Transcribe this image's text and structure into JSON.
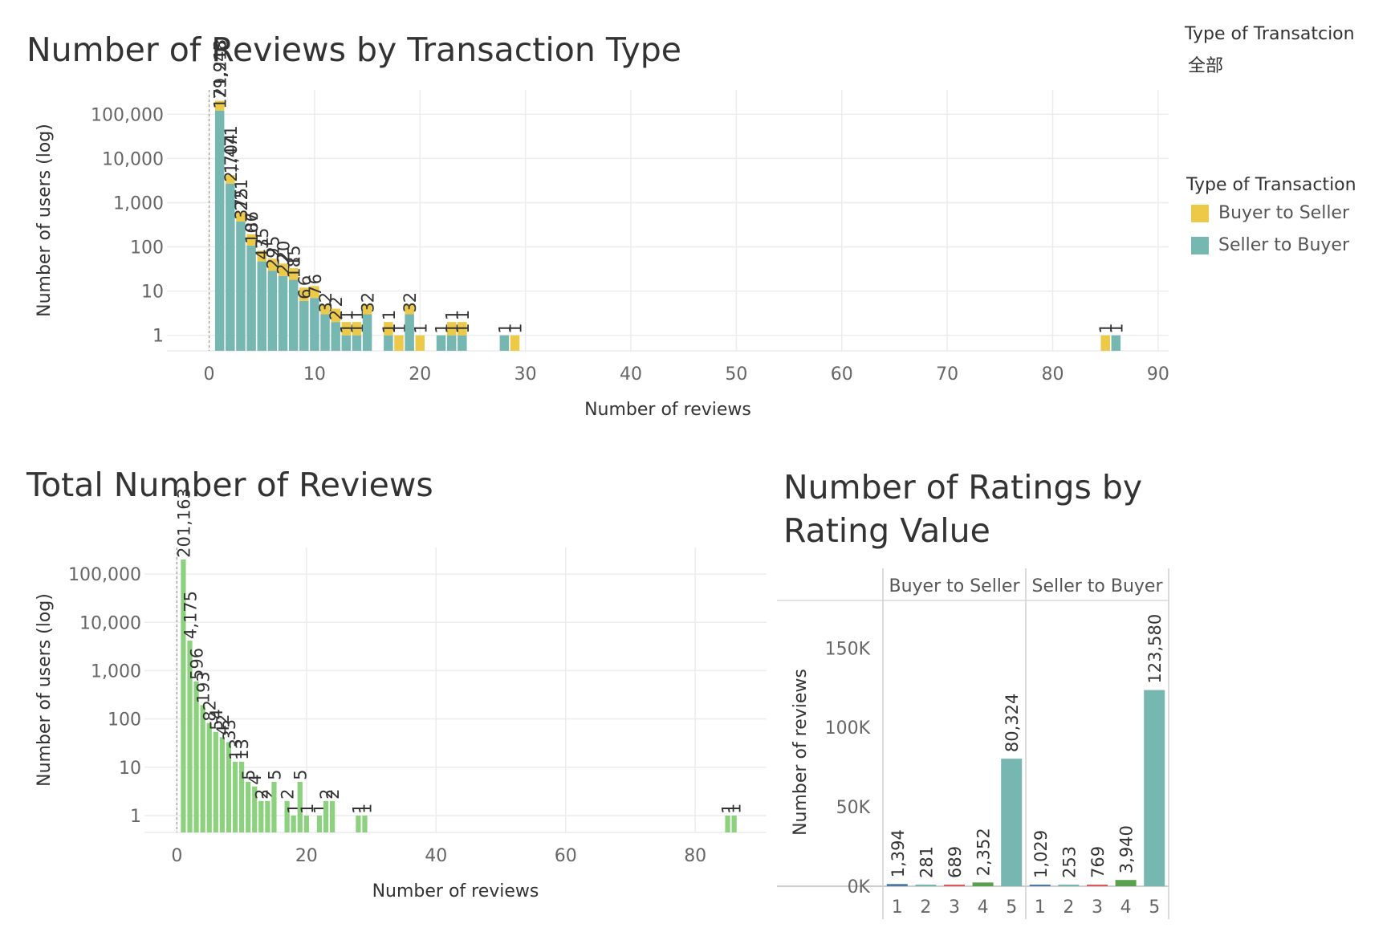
{
  "filter": {
    "title": "Type of Transatcion",
    "value": "全部"
  },
  "legend": {
    "title": "Type of Transaction",
    "items": [
      {
        "label": "Buyer to Seller",
        "color": "#EDC948"
      },
      {
        "label": "Seller to Buyer",
        "color": "#76B7B2"
      }
    ]
  },
  "chart_data": [
    {
      "type": "bar",
      "title": "Number of Reviews by Transaction Type",
      "xlabel": "Number of reviews",
      "ylabel": "Number of users (log)",
      "yscale": "log",
      "xlim": [
        -4,
        91
      ],
      "x_ticks": [
        0,
        10,
        20,
        30,
        40,
        50,
        60,
        70,
        80,
        90
      ],
      "y_ticks": [
        {
          "v": 100000,
          "t": "100,000"
        },
        {
          "v": 10000,
          "t": "10,000"
        },
        {
          "v": 1000,
          "t": "1,000"
        },
        {
          "v": 100,
          "t": "100"
        },
        {
          "v": 10,
          "t": "10"
        },
        {
          "v": 1,
          "t": "1"
        }
      ],
      "grid": true,
      "series": [
        {
          "name": "Buyer to Seller",
          "color": "#EDC948",
          "stack": "top",
          "points": [
            [
              1,
              79945
            ],
            [
              2,
              1471
            ],
            [
              3,
              221
            ],
            [
              4,
              86
            ],
            [
              5,
              35
            ],
            [
              6,
              25
            ],
            [
              7,
              20
            ],
            [
              8,
              15
            ],
            [
              9,
              6
            ],
            [
              10,
              6
            ],
            [
              11,
              2
            ],
            [
              12,
              2
            ],
            [
              13,
              1
            ],
            [
              14,
              1
            ],
            [
              15,
              2
            ],
            [
              17,
              1
            ],
            [
              18,
              1
            ],
            [
              19,
              2
            ],
            [
              20,
              1
            ],
            [
              23,
              1
            ],
            [
              24,
              1
            ],
            [
              29,
              1
            ],
            [
              85,
              1
            ]
          ]
        },
        {
          "name": "Seller to Buyer",
          "color": "#76B7B2",
          "stack": "bottom",
          "points": [
            [
              1,
              121218
            ],
            [
              2,
              2704
            ],
            [
              3,
              375
            ],
            [
              4,
              107
            ],
            [
              5,
              47
            ],
            [
              6,
              29
            ],
            [
              7,
              22
            ],
            [
              8,
              18
            ],
            [
              9,
              6
            ],
            [
              10,
              7
            ],
            [
              11,
              3
            ],
            [
              12,
              2
            ],
            [
              13,
              1
            ],
            [
              14,
              1
            ],
            [
              15,
              3
            ],
            [
              17,
              1
            ],
            [
              19,
              3
            ],
            [
              22,
              1
            ],
            [
              23,
              1
            ],
            [
              24,
              1
            ],
            [
              28,
              1
            ],
            [
              86,
              1
            ]
          ]
        }
      ]
    },
    {
      "type": "bar",
      "title": "Total Number of Reviews",
      "xlabel": "Number of reviews",
      "ylabel": "Number of users (log)",
      "yscale": "log",
      "xlim": [
        -5,
        91
      ],
      "x_ticks": [
        0,
        20,
        40,
        60,
        80
      ],
      "y_ticks": [
        {
          "v": 100000,
          "t": "100,000"
        },
        {
          "v": 10000,
          "t": "10,000"
        },
        {
          "v": 1000,
          "t": "1,000"
        },
        {
          "v": 100,
          "t": "100"
        },
        {
          "v": 10,
          "t": "10"
        },
        {
          "v": 1,
          "t": "1"
        }
      ],
      "grid": true,
      "series": [
        {
          "name": "",
          "color": "#8CD17D",
          "points": [
            [
              1,
              201163
            ],
            [
              2,
              4175
            ],
            [
              3,
              596
            ],
            [
              4,
              193
            ],
            [
              5,
              82
            ],
            [
              6,
              54
            ],
            [
              7,
              42
            ],
            [
              8,
              33
            ],
            [
              9,
              13
            ],
            [
              10,
              13
            ],
            [
              11,
              5
            ],
            [
              12,
              4
            ],
            [
              13,
              2
            ],
            [
              14,
              2
            ],
            [
              15,
              5
            ],
            [
              17,
              2
            ],
            [
              18,
              1
            ],
            [
              19,
              5
            ],
            [
              20,
              1
            ],
            [
              22,
              1
            ],
            [
              23,
              2
            ],
            [
              24,
              2
            ],
            [
              28,
              1
            ],
            [
              29,
              1
            ],
            [
              85,
              1
            ],
            [
              86,
              1
            ]
          ]
        }
      ]
    },
    {
      "type": "bar",
      "title": "Number of Ratings by Rating Value",
      "ylabel": "Number of reviews",
      "ylim": [
        0,
        180000
      ],
      "y_ticks": [
        {
          "v": 150000,
          "t": "150K"
        },
        {
          "v": 100000,
          "t": "100K"
        },
        {
          "v": 50000,
          "t": "50K"
        },
        {
          "v": 0,
          "t": "0K"
        }
      ],
      "panels": [
        {
          "name": "Buyer to Seller",
          "categories": [
            "1",
            "2",
            "3",
            "4",
            "5"
          ],
          "values": [
            1394,
            281,
            689,
            2352,
            80324
          ],
          "labels": [
            "1,394",
            "281",
            "689",
            "2,352",
            "80,324"
          ],
          "colors": [
            "#4E79A7",
            "#76B7B2",
            "#E15759",
            "#59A14F",
            "#76B7B2"
          ]
        },
        {
          "name": "Seller to Buyer",
          "categories": [
            "1",
            "2",
            "3",
            "4",
            "5"
          ],
          "values": [
            1029,
            253,
            769,
            3940,
            123580
          ],
          "labels": [
            "1,029",
            "253",
            "769",
            "3,940",
            "123,580"
          ],
          "colors": [
            "#4E79A7",
            "#76B7B2",
            "#E15759",
            "#59A14F",
            "#76B7B2"
          ]
        }
      ]
    }
  ]
}
